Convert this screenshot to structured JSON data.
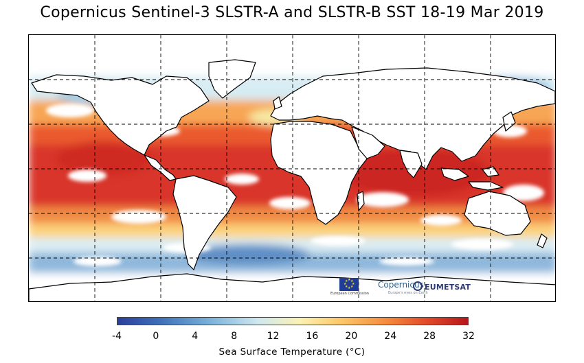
{
  "title": "Copernicus Sentinel-3 SLSTR-A and SLSTR-B SST 18-19 Mar 2019",
  "colorbar": {
    "title": "Sea Surface Temperature (°C)",
    "ticks": [
      "-4",
      "0",
      "4",
      "8",
      "12",
      "16",
      "20",
      "24",
      "28",
      "32"
    ],
    "min": -4,
    "max": 32,
    "colors": [
      "#2a3f9b",
      "#78b0d8",
      "#cfe7f0",
      "#fbf2b4",
      "#fcc768",
      "#f48a3d",
      "#e34b2a",
      "#b7171c"
    ]
  },
  "logos": {
    "eu_label": "European Commission",
    "copernicus": "Copernicus",
    "copernicus_tagline": "Europe's eyes on Earth",
    "eumetsat": "EUMETSAT"
  },
  "map": {
    "projection": "equirectangular",
    "grid": true,
    "land_color": "#ffffff",
    "coastline_color": "#000000"
  }
}
